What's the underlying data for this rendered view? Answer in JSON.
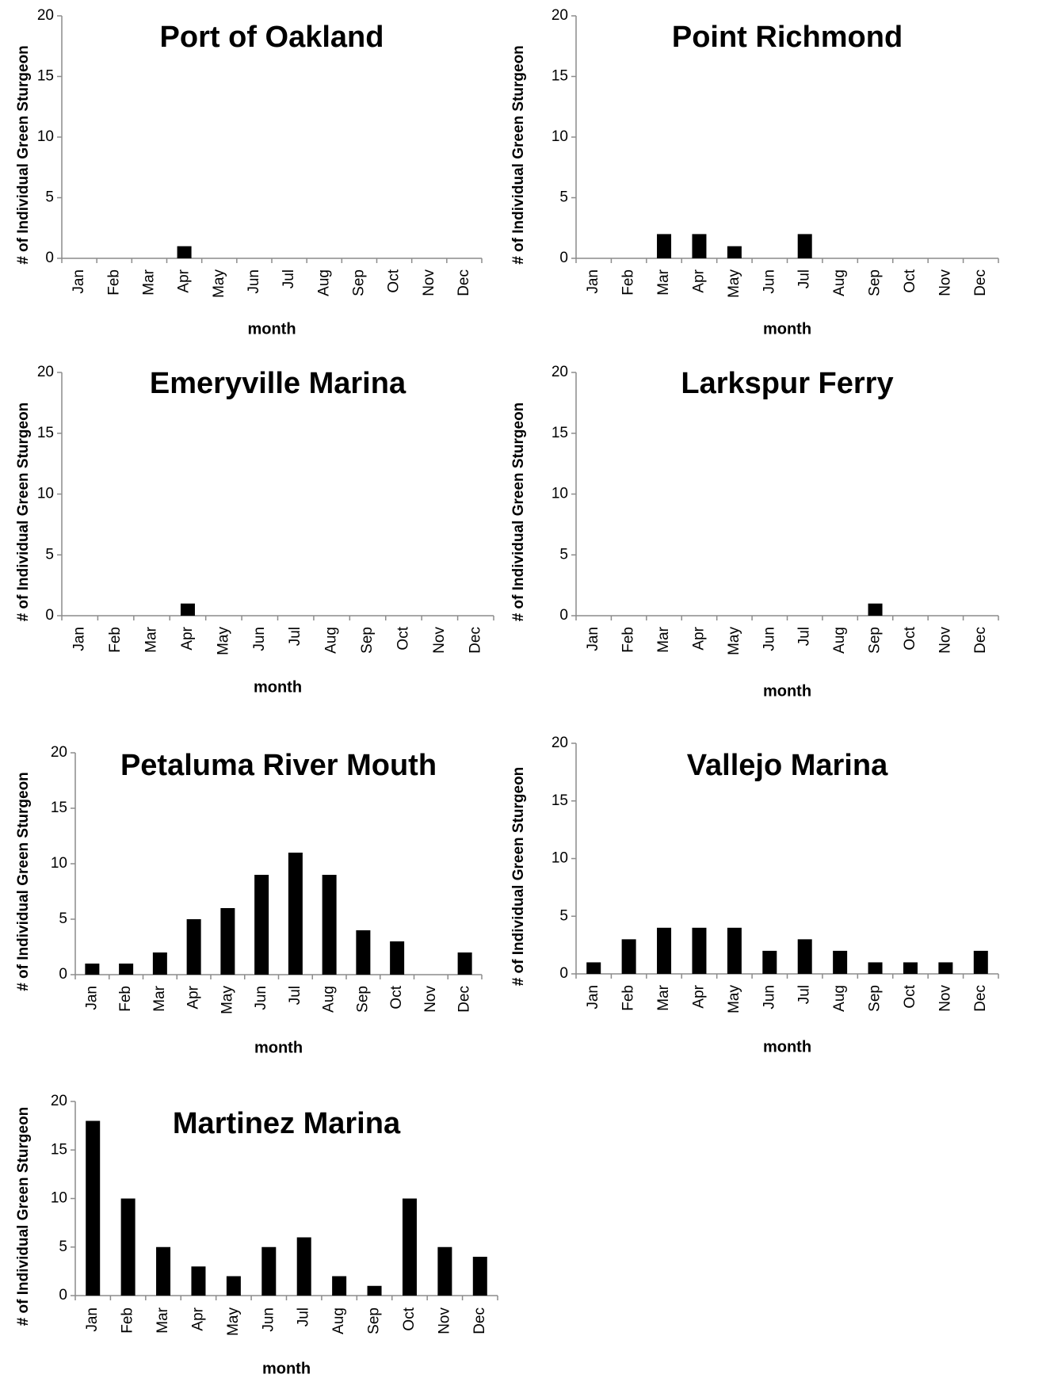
{
  "chart_data": [
    {
      "type": "bar",
      "title": "Port of Oakland",
      "xlabel": "month",
      "ylabel": "# of Individual Green Sturgeon",
      "categories": [
        "Jan",
        "Feb",
        "Mar",
        "Apr",
        "May",
        "Jun",
        "Jul",
        "Aug",
        "Sep",
        "Oct",
        "Nov",
        "Dec"
      ],
      "values": [
        0,
        0,
        0,
        1,
        0,
        0,
        0,
        0,
        0,
        0,
        0,
        0
      ],
      "yticks": [
        "0",
        "5",
        "10",
        "15",
        "20"
      ],
      "ylim": [
        0,
        20
      ],
      "grid": false,
      "bar_color": "#000000"
    },
    {
      "type": "bar",
      "title": "Point Richmond",
      "xlabel": "month",
      "ylabel": "# of Individual Green Sturgeon",
      "categories": [
        "Jan",
        "Feb",
        "Mar",
        "Apr",
        "May",
        "Jun",
        "Jul",
        "Aug",
        "Sep",
        "Oct",
        "Nov",
        "Dec"
      ],
      "values": [
        0,
        0,
        2,
        2,
        1,
        0,
        2,
        0,
        0,
        0,
        0,
        0
      ],
      "yticks": [
        "0",
        "5",
        "10",
        "15",
        "20"
      ],
      "ylim": [
        0,
        20
      ],
      "grid": false,
      "bar_color": "#000000"
    },
    {
      "type": "bar",
      "title": "Emeryville Marina",
      "xlabel": "month",
      "ylabel": "# of Individual Green Sturgeon",
      "categories": [
        "Jan",
        "Feb",
        "Mar",
        "Apr",
        "May",
        "Jun",
        "Jul",
        "Aug",
        "Sep",
        "Oct",
        "Nov",
        "Dec"
      ],
      "values": [
        0,
        0,
        0,
        1,
        0,
        0,
        0,
        0,
        0,
        0,
        0,
        0
      ],
      "yticks": [
        "0",
        "5",
        "10",
        "15",
        "20"
      ],
      "ylim": [
        0,
        20
      ],
      "grid": false,
      "bar_color": "#000000"
    },
    {
      "type": "bar",
      "title": "Larkspur Ferry",
      "xlabel": "month",
      "ylabel": "# of Individual Green Sturgeon",
      "categories": [
        "Jan",
        "Feb",
        "Mar",
        "Apr",
        "May",
        "Jun",
        "Jul",
        "Aug",
        "Sep",
        "Oct",
        "Nov",
        "Dec"
      ],
      "values": [
        0,
        0,
        0,
        0,
        0,
        0,
        0,
        0,
        1,
        0,
        0,
        0
      ],
      "yticks": [
        "0",
        "5",
        "10",
        "15",
        "20"
      ],
      "ylim": [
        0,
        20
      ],
      "grid": false,
      "bar_color": "#000000"
    },
    {
      "type": "bar",
      "title": "Petaluma River Mouth",
      "xlabel": "month",
      "ylabel": "# of Individual Green Sturgeon",
      "categories": [
        "Jan",
        "Feb",
        "Mar",
        "Apr",
        "May",
        "Jun",
        "Jul",
        "Aug",
        "Sep",
        "Oct",
        "Nov",
        "Dec"
      ],
      "values": [
        1,
        1,
        2,
        5,
        6,
        9,
        11,
        9,
        4,
        3,
        0,
        2
      ],
      "yticks": [
        "0",
        "5",
        "10",
        "15",
        "20"
      ],
      "ylim": [
        0,
        20
      ],
      "grid": false,
      "bar_color": "#000000"
    },
    {
      "type": "bar",
      "title": "Vallejo Marina",
      "xlabel": "month",
      "ylabel": "# of Individual Green Sturgeon",
      "categories": [
        "Jan",
        "Feb",
        "Mar",
        "Apr",
        "May",
        "Jun",
        "Jul",
        "Aug",
        "Sep",
        "Oct",
        "Nov",
        "Dec"
      ],
      "values": [
        1,
        3,
        4,
        4,
        4,
        2,
        3,
        2,
        1,
        1,
        1,
        2
      ],
      "yticks": [
        "0",
        "5",
        "10",
        "15",
        "20"
      ],
      "ylim": [
        0,
        20
      ],
      "grid": false,
      "bar_color": "#000000"
    },
    {
      "type": "bar",
      "title": "Martinez Marina",
      "xlabel": "month",
      "ylabel": "# of Individual Green Sturgeon",
      "categories": [
        "Jan",
        "Feb",
        "Mar",
        "Apr",
        "May",
        "Jun",
        "Jul",
        "Aug",
        "Sep",
        "Oct",
        "Nov",
        "Dec"
      ],
      "values": [
        18,
        10,
        5,
        3,
        2,
        5,
        6,
        2,
        1,
        10,
        5,
        4
      ],
      "yticks": [
        "0",
        "5",
        "10",
        "15",
        "20"
      ],
      "ylim": [
        0,
        20
      ],
      "grid": false,
      "bar_color": "#000000"
    }
  ]
}
